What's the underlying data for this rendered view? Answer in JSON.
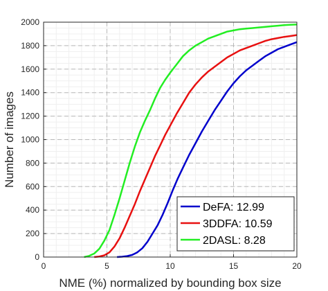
{
  "chart_data": {
    "type": "line",
    "title": "",
    "xlabel": "NME (%) normalized by bounding box size",
    "ylabel": "Number of images",
    "xlim": [
      0,
      20
    ],
    "ylim": [
      0,
      2000
    ],
    "xticks": [
      0,
      5,
      10,
      15,
      20
    ],
    "yticks": [
      0,
      200,
      400,
      600,
      800,
      1000,
      1200,
      1400,
      1600,
      1800,
      2000
    ],
    "grid": true,
    "legend_position": "bottom-right",
    "series": [
      {
        "name": "DeFA: 12.99",
        "color": "#0000cc",
        "x": [
          5.8,
          6.2,
          6.6,
          7.0,
          7.4,
          7.8,
          8.2,
          8.6,
          9.0,
          9.4,
          9.8,
          10.2,
          10.6,
          11.0,
          11.5,
          12.0,
          12.5,
          13.0,
          13.5,
          14.0,
          14.5,
          15.0,
          15.5,
          16.0,
          16.5,
          17.0,
          17.5,
          18.0,
          18.5,
          19.0,
          19.5,
          20.0
        ],
        "y": [
          0,
          3,
          8,
          18,
          40,
          75,
          130,
          200,
          270,
          360,
          460,
          570,
          670,
          760,
          870,
          970,
          1070,
          1160,
          1250,
          1330,
          1410,
          1480,
          1540,
          1590,
          1630,
          1670,
          1710,
          1740,
          1770,
          1790,
          1810,
          1830
        ]
      },
      {
        "name": "3DDFA: 10.59",
        "color": "#e81010",
        "x": [
          4.0,
          4.4,
          4.8,
          5.2,
          5.6,
          6.0,
          6.4,
          6.8,
          7.2,
          7.6,
          8.0,
          8.4,
          8.8,
          9.2,
          9.6,
          10.0,
          10.5,
          11.0,
          11.5,
          12.0,
          12.5,
          13.0,
          13.5,
          14.0,
          14.5,
          15.0,
          15.5,
          16.0,
          16.5,
          17.0,
          17.5,
          18.0,
          18.5,
          19.0,
          19.5,
          20.0
        ],
        "y": [
          0,
          5,
          15,
          40,
          90,
          160,
          250,
          350,
          450,
          560,
          660,
          760,
          860,
          950,
          1040,
          1120,
          1220,
          1310,
          1400,
          1470,
          1530,
          1580,
          1620,
          1660,
          1700,
          1730,
          1760,
          1780,
          1800,
          1820,
          1840,
          1855,
          1865,
          1875,
          1882,
          1890
        ]
      },
      {
        "name": "2DASL: 8.28",
        "color": "#22ee22",
        "x": [
          3.2,
          3.6,
          4.0,
          4.4,
          4.8,
          5.2,
          5.6,
          6.0,
          6.4,
          6.8,
          7.2,
          7.6,
          8.0,
          8.4,
          8.8,
          9.2,
          9.6,
          10.0,
          10.5,
          11.0,
          11.5,
          12.0,
          12.5,
          13.0,
          13.5,
          14.0,
          14.5,
          15.0,
          15.5,
          16.0,
          16.5,
          17.0,
          17.5,
          18.0,
          18.5,
          19.0,
          19.5,
          20.0
        ],
        "y": [
          0,
          10,
          30,
          70,
          140,
          230,
          360,
          500,
          650,
          800,
          940,
          1060,
          1160,
          1250,
          1350,
          1440,
          1510,
          1570,
          1640,
          1710,
          1760,
          1800,
          1830,
          1860,
          1880,
          1900,
          1920,
          1930,
          1940,
          1945,
          1950,
          1955,
          1960,
          1965,
          1970,
          1975,
          1978,
          1980
        ]
      }
    ]
  }
}
